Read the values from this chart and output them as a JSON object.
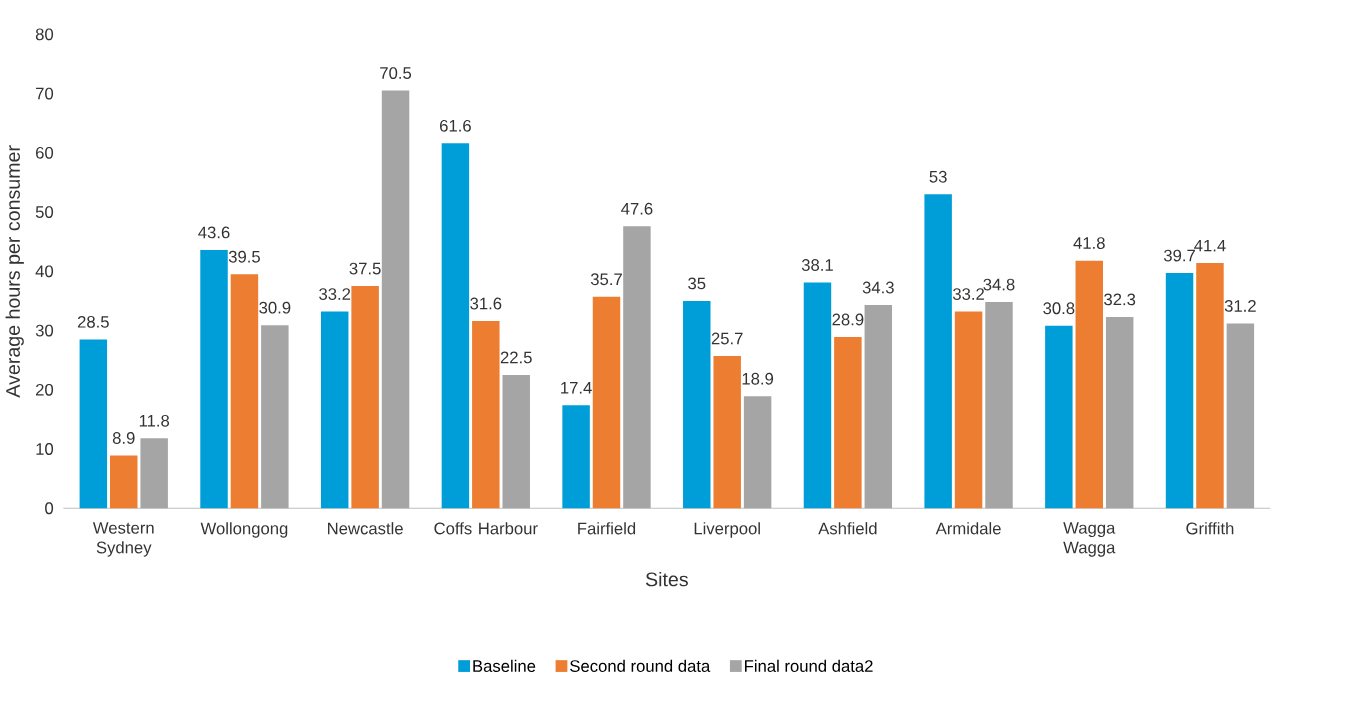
{
  "chart_data": {
    "type": "bar",
    "xlabel": "Sites",
    "ylabel": "Average hours per consumer",
    "categories": [
      "Western Sydney",
      "Wollongong",
      "Newcastle",
      "Coffs Harbour",
      "Fairfield",
      "Liverpool",
      "Ashfield",
      "Armidale",
      "Wagga Wagga",
      "Griffith"
    ],
    "series": [
      {
        "name": "Baseline",
        "color": "#009ed8",
        "values": [
          28.5,
          43.6,
          33.2,
          61.6,
          17.4,
          35,
          38.1,
          53,
          30.8,
          39.7
        ]
      },
      {
        "name": "Second round data",
        "color": "#ed7d31",
        "values": [
          8.9,
          39.5,
          37.5,
          31.6,
          35.7,
          25.7,
          28.9,
          33.2,
          41.8,
          41.4
        ]
      },
      {
        "name": "Final round data2",
        "color": "#a5a5a5",
        "values": [
          11.8,
          30.9,
          70.5,
          22.5,
          47.6,
          18.9,
          34.3,
          34.8,
          32.3,
          31.2
        ]
      }
    ],
    "ylim": [
      0,
      80
    ],
    "yticks": [
      0,
      10,
      20,
      30,
      40,
      50,
      60,
      70,
      80
    ],
    "data_labels": true,
    "legend": "bottom",
    "grid": false
  }
}
